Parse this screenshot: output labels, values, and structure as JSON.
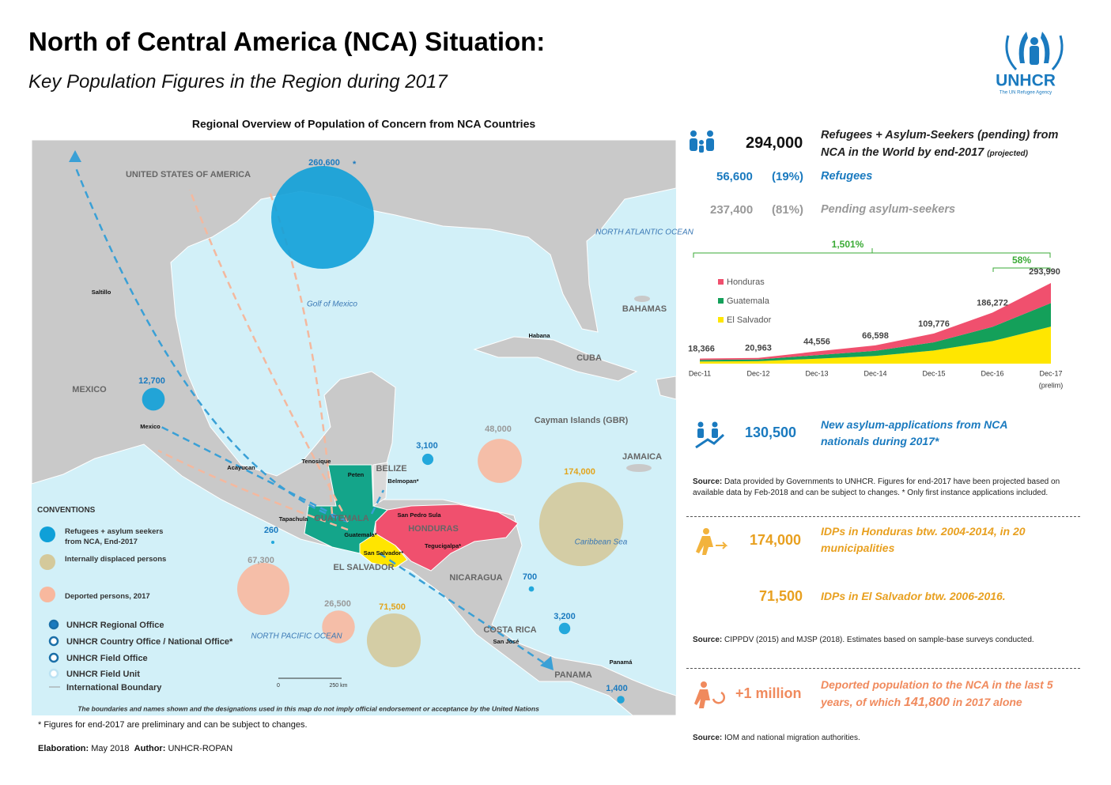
{
  "header": {
    "title": "North of Central America (NCA) Situation:",
    "subtitle": "Key Population Figures in the Region during 2017",
    "logo_text": "UNHCR",
    "logo_subtext": "The UN Refugee Agency"
  },
  "map": {
    "title": "Regional Overview of Population of Concern from NCA Countries",
    "labels": [
      "UNITED STATES OF AMERICA",
      "MEXICO",
      "CUBA",
      "BAHAMAS",
      "JAMAICA",
      "Cayman Islands (GBR)",
      "BELIZE",
      "GUATEMALA",
      "HONDURAS",
      "EL SALVADOR",
      "NICARAGUA",
      "COSTA RICA",
      "PANAMA",
      "Golf of Mexico",
      "NORTH ATLANTIC OCEAN",
      "NORTH PACIFIC OCEAN",
      "Caribbean Sea",
      "Saltillo",
      "Habana",
      "Mexico",
      "Acayucan",
      "Tenosique",
      "Peten",
      "Belmopan*",
      "Tapachula",
      "Guatemala*",
      "San Pedro Sula",
      "Tegucigalpa*",
      "San Salvador*",
      "San José",
      "Panamá"
    ],
    "bubbles": [
      {
        "value": 260600,
        "label": "260,600",
        "color": "#0fa0d8"
      },
      {
        "value": 12700,
        "label": "12,700",
        "color": "#0fa0d8"
      },
      {
        "value": 3100,
        "label": "3,100",
        "color": "#0fa0d8"
      },
      {
        "value": 48000,
        "label": "48,000",
        "color": "#f8b89e"
      },
      {
        "value": 174000,
        "label": "174,000",
        "color": "#d4c99b"
      },
      {
        "value": 260,
        "label": "260",
        "color": "#0fa0d8"
      },
      {
        "value": 67300,
        "label": "67,300",
        "color": "#f8b89e"
      },
      {
        "value": 26500,
        "label": "26,500",
        "color": "#f8b89e"
      },
      {
        "value": 71500,
        "label": "71,500",
        "color": "#d4c99b"
      },
      {
        "value": 700,
        "label": "700",
        "color": "#0fa0d8"
      },
      {
        "value": 3200,
        "label": "3,200",
        "color": "#0fa0d8"
      },
      {
        "value": 1400,
        "label": "1,400",
        "color": "#0fa0d8"
      }
    ],
    "asterisk": "*",
    "legend": {
      "title": "CONVENTIONS",
      "items": [
        {
          "text": "Refugees + asylum seekers from NCA, End-2017",
          "color": "#0fa0d8"
        },
        {
          "text": "Internally displaced persons",
          "color": "#d4c99b"
        },
        {
          "text": "Deported persons, 2017",
          "color": "#f8b89e"
        },
        {
          "text": "UNHCR Regional Office"
        },
        {
          "text": "UNHCR Country Office / National Office*"
        },
        {
          "text": "UNHCR Field Office"
        },
        {
          "text": "UNHCR Field Unit"
        },
        {
          "text": "International Boundary"
        }
      ]
    },
    "scale": [
      "0",
      "250 km"
    ],
    "disclaimer": "The boundaries and names shown and the designations used in this map do not imply official endorsement or acceptance by the United Nations"
  },
  "chart_data": {
    "type": "area",
    "stacked": true,
    "categories": [
      "Dec-11",
      "Dec-12",
      "Dec-13",
      "Dec-14",
      "Dec-15",
      "Dec-16",
      "Dec-17"
    ],
    "x_note": "(prelim)",
    "series": [
      {
        "name": "Honduras",
        "color": "#f0506e",
        "values": [
          5000,
          5500,
          13500,
          19500,
          32000,
          52000,
          73000
        ]
      },
      {
        "name": "Guatemala",
        "color": "#14a05a",
        "values": [
          5500,
          6500,
          13000,
          19000,
          30000,
          52000,
          86000
        ]
      },
      {
        "name": "El Salvador",
        "color": "#ffe600",
        "values": [
          8000,
          9000,
          18000,
          28000,
          48000,
          82000,
          135000
        ]
      }
    ],
    "totals": {
      "values": [
        18366,
        20963,
        44556,
        66598,
        109776,
        186272,
        293990
      ],
      "value_labels": [
        "18,366",
        "20,963",
        "44,556",
        "66,598",
        "109,776",
        "186,272",
        "293,990"
      ]
    },
    "annotations": [
      {
        "text": "1,501%"
      },
      {
        "text": "58%"
      }
    ],
    "annotation_color": "#3aaa35"
  },
  "summary": {
    "total": {
      "number": "294,000",
      "text": "Refugees + Asylum-Seekers (pending) from NCA in the World by end-2017",
      "note": "(projected)"
    },
    "refugees": {
      "number": "56,600",
      "share": "(19%)",
      "text": "Refugees"
    },
    "pending": {
      "number": "237,400",
      "share": "(81%)",
      "text": "Pending asylum-seekers"
    },
    "applications": {
      "number": "130,500",
      "text": "New asylum-applications from NCA nationals during 2017*",
      "source_label": "Source:",
      "source": "Data provided by Governments to UNHCR.  Figures for end-2017 have been projected based on available data by Feb-2018 and can be subject to changes. * Only first instance applications included."
    },
    "idps_honduras": {
      "number": "174,000",
      "text": "IDPs in Honduras btw. 2004-2014,  in 20 municipalities"
    },
    "idps_el_salvador": {
      "number": "71,500",
      "text": "IDPs in El Salvador btw. 2006-2016.",
      "source_label": "Source:",
      "source": "CIPPDV (2015) and MJSP (2018). Estimates based on sample-base surveys conducted."
    },
    "deported": {
      "number": "+1 million",
      "text": "Deported population to the NCA in the last 5 years, of which",
      "highlight": "141,800",
      "text_end": "in 2017 alone",
      "source_label": "Source:",
      "source": "IOM and national migration authorities."
    }
  },
  "footer": {
    "note": "* Figures for end-2017 are preliminary and can be subject to changes.",
    "elaboration_label": "Elaboration:",
    "elaboration": "May 2018",
    "author_label": "Author:",
    "author": "UNHCR-ROPAN"
  }
}
